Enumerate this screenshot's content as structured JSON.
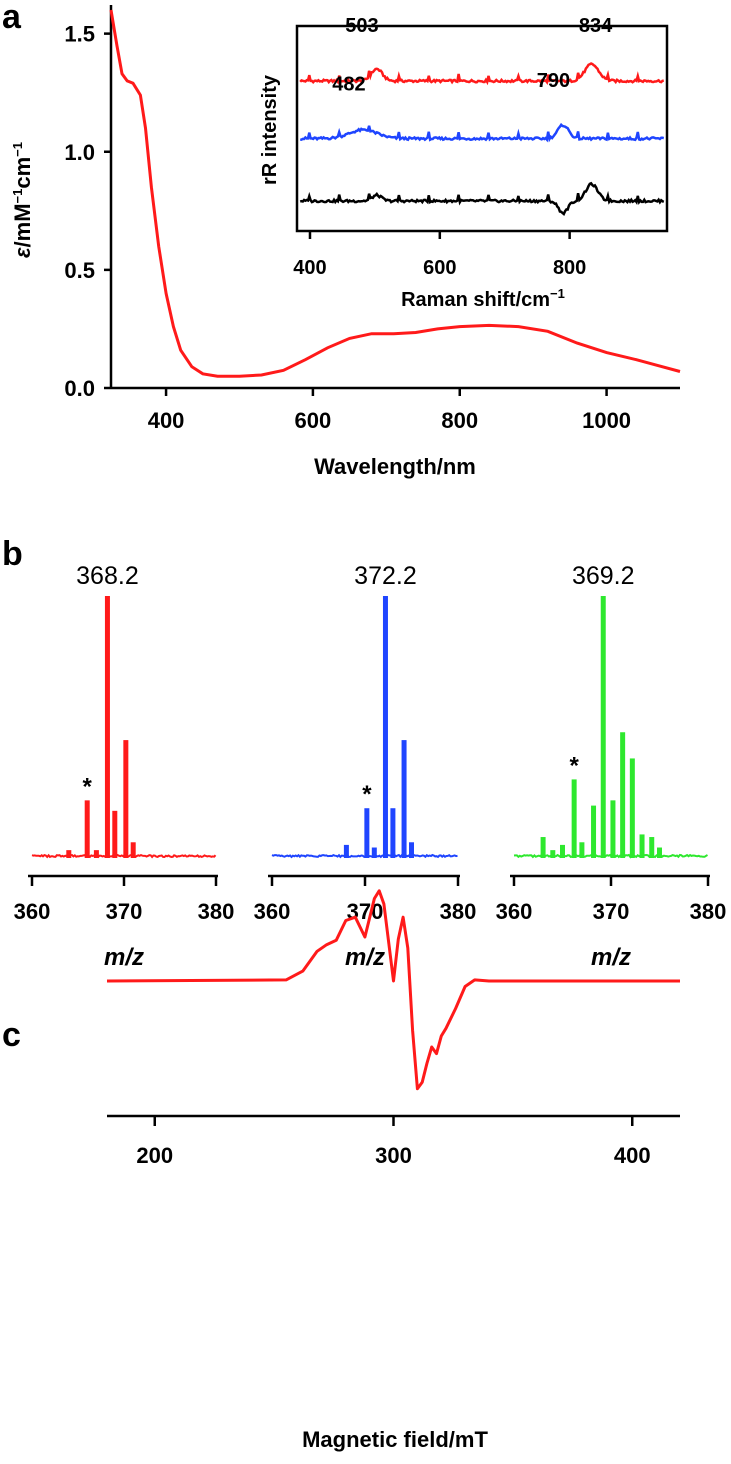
{
  "colors": {
    "red": "#ff1a1a",
    "blue": "#1f45ff",
    "green": "#2ee82e",
    "black": "#000000"
  },
  "chart_data": [
    {
      "id": "a",
      "panel_label": "a",
      "type": "line",
      "title": "",
      "xlabel": "Wavelength/nm",
      "ylabel": "ε/mM⁻¹cm⁻¹",
      "ylabel_parts": [
        "ε",
        "/mM",
        "−1",
        "cm",
        "−1"
      ],
      "xlim": [
        325,
        1100
      ],
      "ylim": [
        0,
        1.6
      ],
      "xticks": [
        400,
        600,
        800,
        1000
      ],
      "yticks": [
        "0.0",
        "0.5",
        "1.0",
        "1.5"
      ],
      "series": [
        {
          "name": "absorption",
          "color": "red",
          "x": [
            325,
            333,
            340,
            347,
            355,
            365,
            372,
            380,
            390,
            400,
            410,
            420,
            435,
            450,
            470,
            500,
            530,
            560,
            590,
            620,
            650,
            680,
            710,
            740,
            770,
            800,
            840,
            880,
            920,
            960,
            1000,
            1040,
            1070,
            1100
          ],
          "y": [
            1.6,
            1.45,
            1.33,
            1.3,
            1.29,
            1.24,
            1.1,
            0.85,
            0.6,
            0.4,
            0.26,
            0.16,
            0.09,
            0.06,
            0.05,
            0.05,
            0.055,
            0.075,
            0.12,
            0.17,
            0.21,
            0.23,
            0.23,
            0.235,
            0.25,
            0.26,
            0.265,
            0.26,
            0.24,
            0.19,
            0.15,
            0.12,
            0.095,
            0.07
          ]
        }
      ],
      "inset": {
        "type": "line",
        "xlabel": "Raman shift/cm⁻¹",
        "xlabel_parts": [
          "Raman shift/cm",
          "−1"
        ],
        "ylabel": "rR intensity",
        "xlim": [
          380,
          950
        ],
        "xticks": [
          400,
          600,
          800
        ],
        "annotations": [
          {
            "text": "503",
            "x": 480,
            "y": 3.52
          },
          {
            "text": "834",
            "x": 840,
            "y": 3.52
          },
          {
            "text": "482",
            "x": 460,
            "y": 2.3
          },
          {
            "text": "790",
            "x": 775,
            "y": 2.37
          }
        ],
        "series": [
          {
            "name": "red trace",
            "color": "red",
            "offset": 2.5,
            "peaks": [
              {
                "x": 503,
                "h": 0.25,
                "w": 12
              },
              {
                "x": 834,
                "h": 0.35,
                "w": 15
              }
            ]
          },
          {
            "name": "blue trace",
            "color": "blue",
            "offset": 1.3,
            "peaks": [
              {
                "x": 482,
                "h": 0.18,
                "w": 30
              },
              {
                "x": 790,
                "h": 0.28,
                "w": 12
              }
            ]
          },
          {
            "name": "black trace",
            "color": "black",
            "offset": 0.0,
            "peaks": [
              {
                "x": 503,
                "h": 0.12,
                "w": 10
              },
              {
                "x": 790,
                "h": -0.25,
                "w": 10
              },
              {
                "x": 834,
                "h": 0.35,
                "w": 13
              }
            ]
          }
        ]
      }
    },
    {
      "id": "b",
      "panel_label": "b",
      "type": "bar",
      "subplots": [
        {
          "color": "red",
          "label": "368.2",
          "xlabel": "m/z",
          "xlim": [
            360,
            380
          ],
          "xticks": [
            "360",
            "370",
            "380"
          ],
          "star": "*",
          "star_x": 366,
          "peaks": [
            [
              364,
              0.03
            ],
            [
              366,
              0.22
            ],
            [
              367,
              0.03
            ],
            [
              368.2,
              1.0
            ],
            [
              369,
              0.18
            ],
            [
              370.2,
              0.45
            ],
            [
              371,
              0.06
            ]
          ]
        },
        {
          "color": "blue",
          "label": "372.2",
          "xlabel": "m/z",
          "xlim": [
            360,
            380
          ],
          "xticks": [
            "360",
            "370",
            "380"
          ],
          "star": "*",
          "star_x": 370,
          "peaks": [
            [
              368,
              0.05
            ],
            [
              370.2,
              0.19
            ],
            [
              371,
              0.04
            ],
            [
              372.2,
              1.0
            ],
            [
              373,
              0.19
            ],
            [
              374.2,
              0.45
            ],
            [
              375,
              0.06
            ]
          ]
        },
        {
          "color": "green",
          "label": "369.2",
          "xlabel": "m/z",
          "xlim": [
            360,
            380
          ],
          "xticks": [
            "360",
            "370",
            "380"
          ],
          "star": "*",
          "star_x": 366,
          "peaks": [
            [
              363,
              0.08
            ],
            [
              364,
              0.03
            ],
            [
              365,
              0.05
            ],
            [
              366.2,
              0.3
            ],
            [
              367,
              0.06
            ],
            [
              368.2,
              0.2
            ],
            [
              369.2,
              1.0
            ],
            [
              370.2,
              0.22
            ],
            [
              371.2,
              0.48
            ],
            [
              372.2,
              0.38
            ],
            [
              373.2,
              0.09
            ],
            [
              374.2,
              0.08
            ],
            [
              375,
              0.04
            ]
          ]
        }
      ]
    },
    {
      "id": "c",
      "panel_label": "c",
      "type": "line",
      "xlabel": "Magnetic field/mT",
      "xlim": [
        180,
        420
      ],
      "xticks": [
        200,
        300,
        400
      ],
      "series": [
        {
          "name": "EPR",
          "color": "red",
          "x": [
            180,
            255,
            262,
            268,
            272,
            276,
            280,
            284,
            288,
            292,
            294,
            296,
            300,
            302,
            304,
            306,
            308,
            310,
            312,
            314,
            316,
            318,
            320,
            322,
            326,
            330,
            334,
            340,
            420
          ],
          "y": [
            0,
            0.01,
            0.09,
            0.27,
            0.33,
            0.37,
            0.55,
            0.58,
            0.4,
            0.75,
            0.82,
            0.7,
            0.0,
            0.38,
            0.58,
            0.3,
            -0.45,
            -0.98,
            -0.92,
            -0.75,
            -0.6,
            -0.66,
            -0.5,
            -0.43,
            -0.25,
            -0.05,
            0.01,
            0,
            0
          ]
        }
      ]
    }
  ]
}
